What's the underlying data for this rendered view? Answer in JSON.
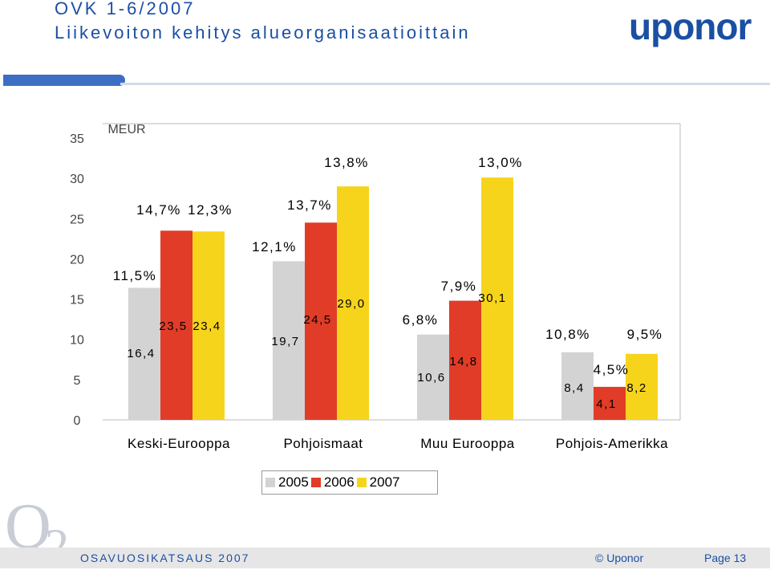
{
  "header": {
    "title_line1": "OVK 1-6/2007",
    "title_line2": "Liikevoiton kehitys alueorganisaatioittain",
    "logo": "uponor"
  },
  "chart_data": {
    "type": "bar",
    "title": "Liikevoiton kehitys alueorganisaatioittain",
    "ylabel": "MEUR",
    "ylim": [
      0,
      35
    ],
    "yticks": [
      0,
      5,
      10,
      15,
      20,
      25,
      30,
      35
    ],
    "categories": [
      "Keski-Eurooppa",
      "Pohjoismaat",
      "Muu Eurooppa",
      "Pohjois-Amerikka"
    ],
    "series": [
      {
        "name": "2005",
        "color": "#d3d3d3",
        "values": [
          16.4,
          19.7,
          10.6,
          8.4
        ],
        "value_labels": [
          "16,4",
          "19,7",
          "10,6",
          "8,4"
        ],
        "margin_labels": [
          "11,5%",
          "12,1%",
          "6,8%",
          "10,8%"
        ]
      },
      {
        "name": "2006",
        "color": "#e03c28",
        "values": [
          23.5,
          24.5,
          14.8,
          4.1
        ],
        "value_labels": [
          "23,5",
          "24,5",
          "14,8",
          "4,1"
        ],
        "margin_labels": [
          "14,7%",
          "13,7%",
          "7,9%",
          "4,5%"
        ]
      },
      {
        "name": "2007",
        "color": "#f7d41c",
        "values": [
          23.4,
          29.0,
          30.1,
          8.2
        ],
        "value_labels": [
          "23,4",
          "29,0",
          "30,1",
          "8,2"
        ],
        "margin_labels": [
          "12,3%",
          "13,8%",
          "13,0%",
          "9,5%"
        ]
      }
    ],
    "legend": "bottom"
  },
  "footer": {
    "logo": "Q2",
    "left": "OSAVUOSIKATSAUS 2007",
    "copyright": "© Uponor",
    "page": "Page 13"
  }
}
